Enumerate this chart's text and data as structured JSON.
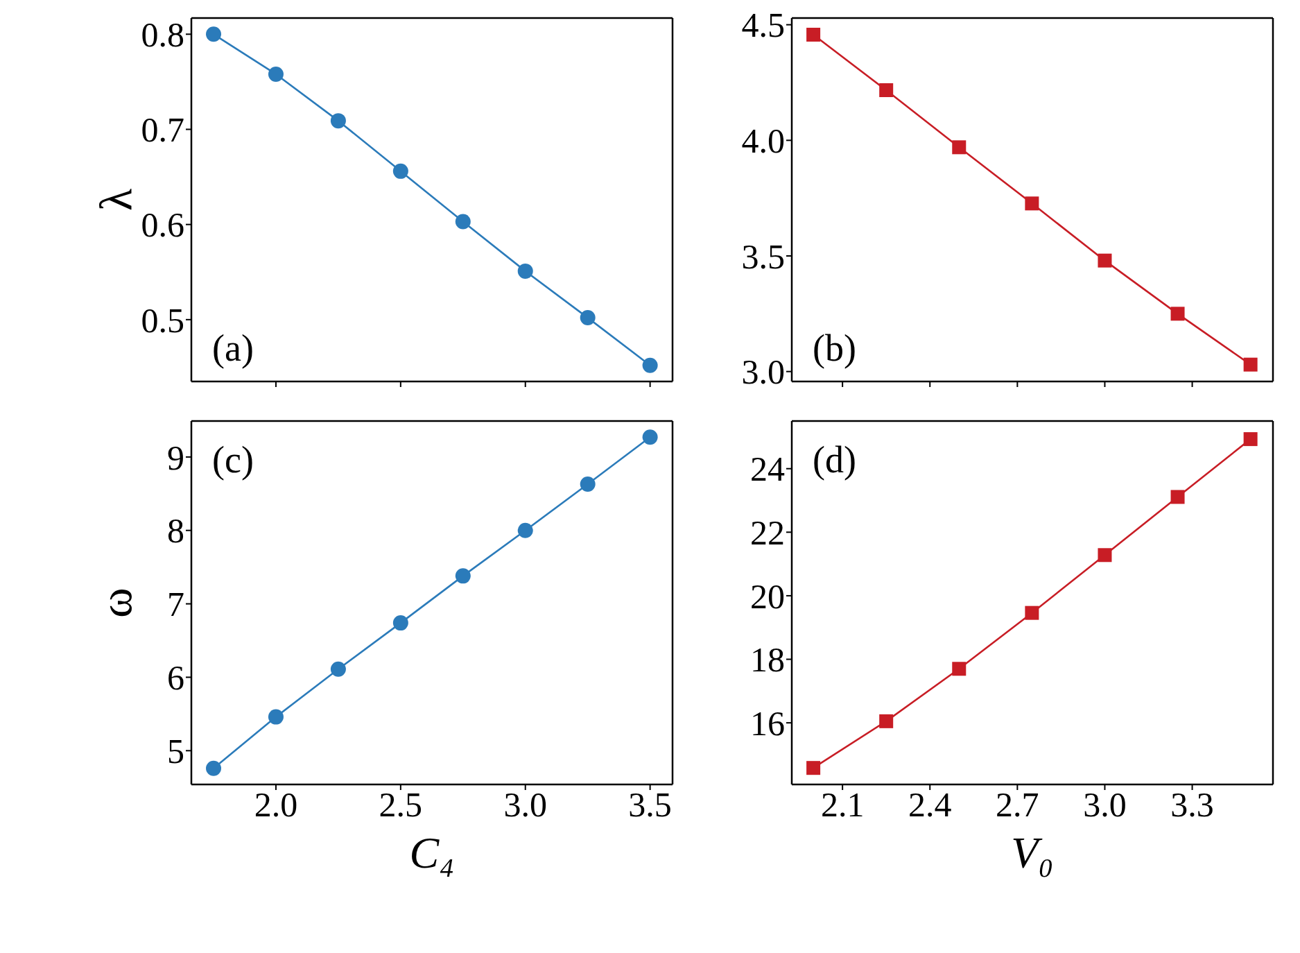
{
  "chart_data": [
    {
      "type": "line",
      "ylabel": "λ",
      "marker": "circle",
      "tick_labels": "y",
      "annotations": [
        "(a)"
      ],
      "x": [
        1.75,
        2.0,
        2.25,
        2.5,
        2.75,
        3.0,
        3.25,
        3.5
      ],
      "xlim": [
        1.661,
        3.59
      ],
      "xticks": [
        {
          "value": 2,
          "label": null
        },
        {
          "value": 2.5,
          "label": null
        },
        {
          "value": 3,
          "label": null
        },
        {
          "value": 3.5,
          "label": null
        }
      ],
      "ylim": [
        0.435,
        0.817
      ],
      "yticks": [
        0.5,
        0.6,
        0.7,
        0.8
      ],
      "series": [
        {
          "color": "#2b7bba",
          "values": [
            0.8,
            0.758,
            0.709,
            0.656,
            0.603,
            0.551,
            0.502,
            0.452
          ]
        }
      ]
    },
    {
      "type": "line",
      "marker": "square",
      "tick_labels": "y",
      "annotations": [
        "(b)"
      ],
      "x": [
        2.0,
        2.25,
        2.5,
        2.75,
        3.0,
        3.25,
        3.5
      ],
      "xlim": [
        1.926,
        3.577
      ],
      "xticks": [
        {
          "value": 2.1,
          "label": null
        },
        {
          "value": 2.4,
          "label": null
        },
        {
          "value": 2.7,
          "label": null
        },
        {
          "value": 3.0,
          "label": null
        },
        {
          "value": 3.3,
          "label": null
        }
      ],
      "ylim": [
        2.957,
        4.529
      ],
      "yticks": [
        {
          "value": 3,
          "label": "3.0"
        },
        3.5,
        {
          "value": 4,
          "label": "4.0"
        },
        4.5
      ],
      "series": [
        {
          "color": "#c81d25",
          "values": [
            4.457,
            4.217,
            3.97,
            3.727,
            3.48,
            3.25,
            3.03
          ]
        }
      ]
    },
    {
      "type": "line",
      "xlabel": "C₄",
      "ylabel": "ω",
      "marker": "circle",
      "annotations": [
        "(c)"
      ],
      "x": [
        1.75,
        2.0,
        2.25,
        2.5,
        2.75,
        3.0,
        3.25,
        3.5
      ],
      "xlim": [
        1.661,
        3.59
      ],
      "xticks": [
        {
          "value": 2,
          "label": "2.0"
        },
        2.5,
        {
          "value": 3,
          "label": "3.0"
        },
        3.5
      ],
      "ylim": [
        4.54,
        9.49
      ],
      "yticks": [
        5,
        6,
        7,
        8,
        9
      ],
      "series": [
        {
          "color": "#2b7bba",
          "values": [
            4.76,
            5.46,
            6.11,
            6.74,
            7.38,
            8.0,
            8.63,
            9.27
          ]
        }
      ]
    },
    {
      "type": "line",
      "xlabel": "V₀",
      "marker": "square",
      "annotations": [
        "(d)"
      ],
      "x": [
        2.0,
        2.25,
        2.5,
        2.75,
        3.0,
        3.25,
        3.5
      ],
      "xlim": [
        1.926,
        3.577
      ],
      "xticks": [
        2.1,
        2.4,
        2.7,
        {
          "value": 3,
          "label": "3.0"
        },
        3.3
      ],
      "ylim": [
        14.06,
        25.5
      ],
      "yticks": [
        16,
        18,
        20,
        22,
        24
      ],
      "series": [
        {
          "color": "#c81d25",
          "values": [
            14.58,
            16.05,
            17.7,
            19.46,
            21.28,
            23.11,
            24.93
          ]
        }
      ]
    }
  ]
}
